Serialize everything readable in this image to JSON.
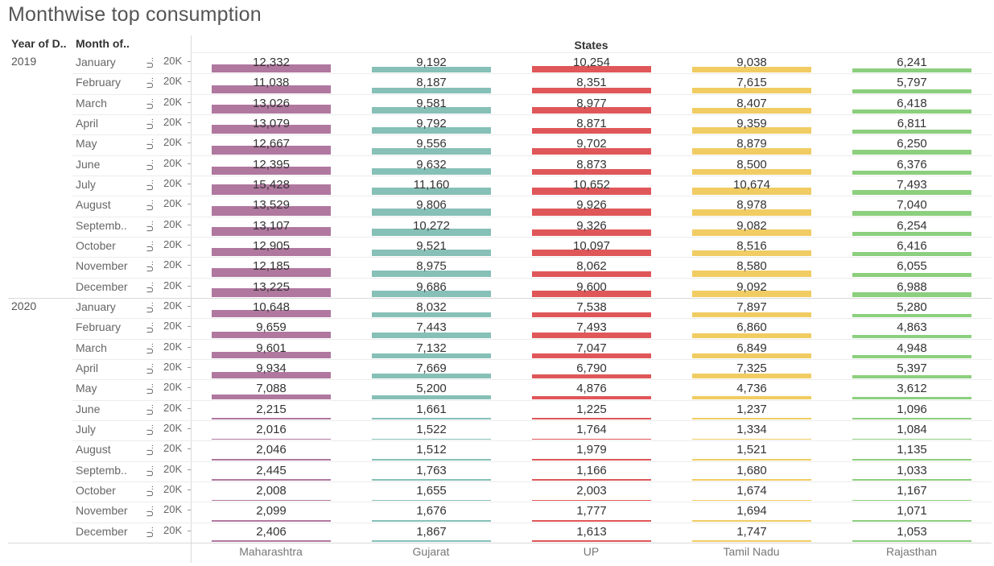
{
  "title": "Monthwise top consumption",
  "header": {
    "year_col": "Year of D..",
    "month_col": "Month of..",
    "states_label": "States"
  },
  "axis": {
    "row_axis_title": "U..",
    "row_axis_tick": "20K"
  },
  "colors": {
    "Maharashtra": "#b0789f",
    "Gujarat": "#86c0b7",
    "UP": "#e05759",
    "Tamil Nadu": "#f0cc63",
    "Rajasthan": "#8ccf7e"
  },
  "chart_data": {
    "type": "bar",
    "title": "Monthwise top consumption",
    "xlabel": "States",
    "categories": [
      "Maharashtra",
      "Gujarat",
      "UP",
      "Tamil Nadu",
      "Rajasthan"
    ],
    "row_axis_range": [
      0,
      20000
    ],
    "years": [
      {
        "year": "2019",
        "months": [
          {
            "month": "January",
            "values": [
              12332,
              9192,
              10254,
              9038,
              6241
            ]
          },
          {
            "month": "February",
            "values": [
              11038,
              8187,
              8351,
              7615,
              5797
            ]
          },
          {
            "month": "March",
            "values": [
              13026,
              9581,
              8977,
              8407,
              6418
            ]
          },
          {
            "month": "April",
            "values": [
              13079,
              9792,
              8871,
              9359,
              6811
            ]
          },
          {
            "month": "May",
            "values": [
              12667,
              9556,
              9702,
              8879,
              6250
            ]
          },
          {
            "month": "June",
            "values": [
              12395,
              9632,
              8873,
              8500,
              6376
            ]
          },
          {
            "month": "July",
            "values": [
              15428,
              11160,
              10652,
              10674,
              7493
            ]
          },
          {
            "month": "August",
            "values": [
              13529,
              9806,
              9926,
              8978,
              7040
            ]
          },
          {
            "month": "Septemb..",
            "values": [
              13107,
              10272,
              9326,
              9082,
              6254
            ]
          },
          {
            "month": "October",
            "values": [
              12905,
              9521,
              10097,
              8516,
              6416
            ]
          },
          {
            "month": "November",
            "values": [
              12185,
              8975,
              8062,
              8580,
              6055
            ]
          },
          {
            "month": "December",
            "values": [
              13225,
              9686,
              9600,
              9092,
              6988
            ]
          }
        ]
      },
      {
        "year": "2020",
        "months": [
          {
            "month": "January",
            "values": [
              10648,
              8032,
              7538,
              7897,
              5280
            ]
          },
          {
            "month": "February",
            "values": [
              9659,
              7443,
              7493,
              6860,
              4863
            ]
          },
          {
            "month": "March",
            "values": [
              9601,
              7132,
              7047,
              6849,
              4948
            ]
          },
          {
            "month": "April",
            "values": [
              9934,
              7669,
              6790,
              7325,
              5397
            ]
          },
          {
            "month": "May",
            "values": [
              7088,
              5200,
              4876,
              4736,
              3612
            ]
          },
          {
            "month": "June",
            "values": [
              2215,
              1661,
              1225,
              1237,
              1096
            ]
          },
          {
            "month": "July",
            "values": [
              2016,
              1522,
              1764,
              1334,
              1084
            ]
          },
          {
            "month": "August",
            "values": [
              2046,
              1512,
              1979,
              1521,
              1135
            ]
          },
          {
            "month": "Septemb..",
            "values": [
              2445,
              1763,
              1166,
              1680,
              1033
            ]
          },
          {
            "month": "October",
            "values": [
              2008,
              1655,
              2003,
              1674,
              1167
            ]
          },
          {
            "month": "November",
            "values": [
              2099,
              1676,
              1777,
              1694,
              1071
            ]
          },
          {
            "month": "December",
            "values": [
              2406,
              1867,
              1613,
              1747,
              1053
            ]
          }
        ]
      }
    ]
  }
}
